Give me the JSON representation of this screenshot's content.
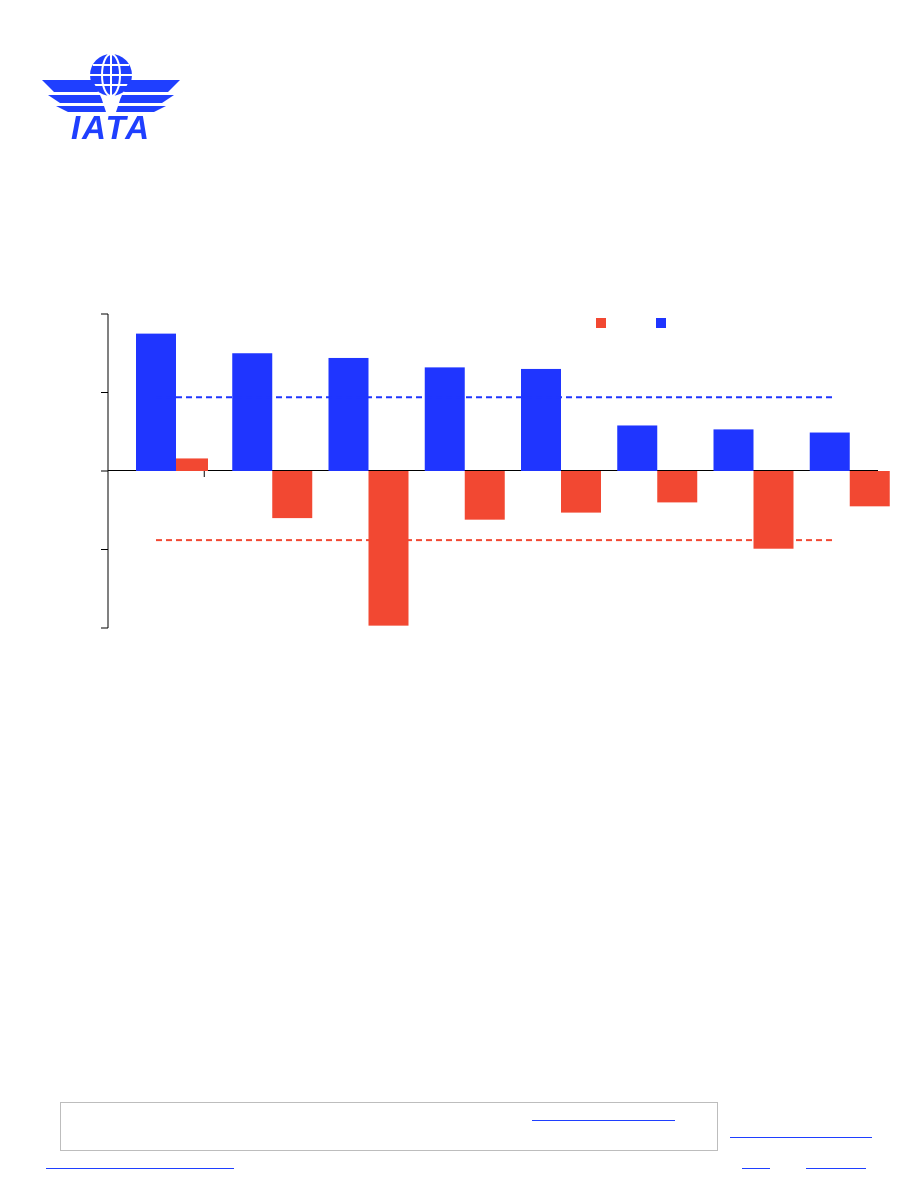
{
  "logo": {
    "text": "IATA",
    "brand_color": "#1f3fff"
  },
  "chart_data": {
    "type": "bar",
    "categories": [
      "",
      "",
      "",
      "",
      "",
      "",
      "",
      ""
    ],
    "series": [
      {
        "color": "#1f35ff",
        "values": [
          1.75,
          1.5,
          1.44,
          1.32,
          1.3,
          0.58,
          0.53,
          0.49
        ]
      },
      {
        "color": "#f24832",
        "values": [
          0.16,
          -0.6,
          -1.97,
          -0.62,
          -0.53,
          -0.4,
          -0.99,
          -0.45
        ]
      }
    ],
    "reference_lines": [
      {
        "value": 0.94,
        "color": "#1f35ff",
        "style": "dashed"
      },
      {
        "value": -0.88,
        "color": "#f24832",
        "style": "dashed"
      }
    ],
    "ylim": [
      -2,
      2
    ],
    "yticks": [
      2,
      1,
      0,
      -1,
      -2
    ],
    "legend_placement": "top-right",
    "grid": false
  },
  "footer": {
    "link_color": "#1f3fff"
  }
}
